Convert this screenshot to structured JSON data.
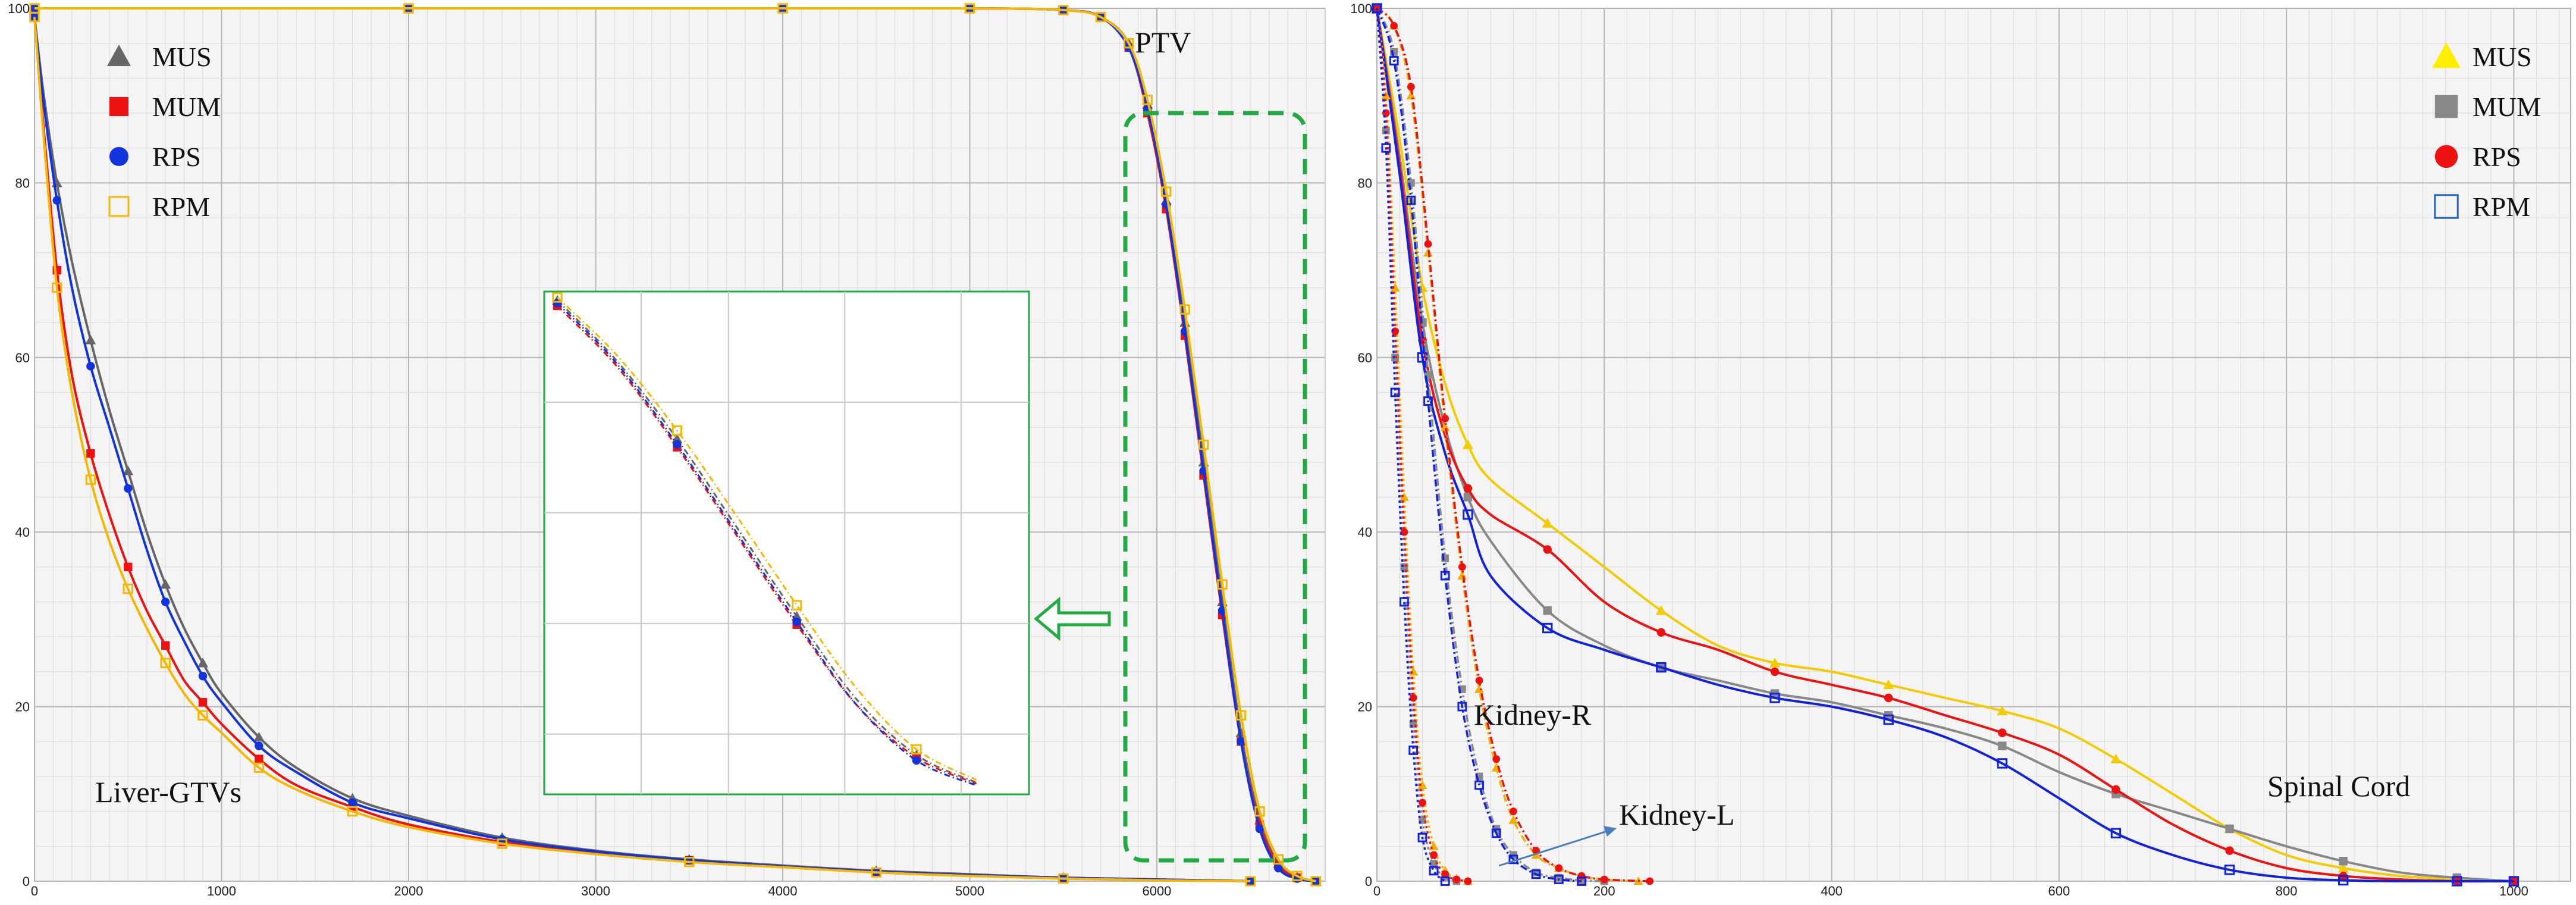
{
  "chart_data": [
    {
      "type": "line",
      "title": "",
      "xlabel": "",
      "ylabel": "",
      "xlim": [
        0,
        6900
      ],
      "ylim": [
        0,
        100
      ],
      "xticks": [
        0,
        1000,
        2000,
        3000,
        4000,
        5000,
        6000
      ],
      "yticks": [
        0,
        20,
        40,
        60,
        80,
        100
      ],
      "grid": true,
      "legend": {
        "placement": "top-left",
        "entries": [
          {
            "name": "MUS",
            "marker": "triangle",
            "color": "#666666"
          },
          {
            "name": "MUM",
            "marker": "square",
            "color": "#ee1111"
          },
          {
            "name": "RPS",
            "marker": "circle",
            "color": "#1133dd"
          },
          {
            "name": "RPM",
            "marker": "square-outline",
            "color": "#f5b800"
          }
        ]
      },
      "annotations": [
        "PTV",
        "Liver-GTVs"
      ],
      "series": [
        {
          "name": "MUS",
          "structure": "Liver-GTVs",
          "color": "#666666",
          "marker": "triangle",
          "x": [
            0,
            50,
            120,
            200,
            300,
            400,
            500,
            600,
            700,
            800,
            900,
            1000,
            1200,
            1400,
            1700,
            2000,
            2500,
            3000,
            3500,
            4000,
            4500,
            5000,
            5500,
            6000,
            6500
          ],
          "y": [
            99,
            90,
            80,
            71,
            62,
            54,
            47,
            40,
            34,
            29,
            25,
            21.5,
            16.5,
            13,
            9.5,
            7.5,
            5,
            3.5,
            2.5,
            1.8,
            1.2,
            0.8,
            0.4,
            0.2,
            0
          ]
        },
        {
          "name": "MUM",
          "structure": "Liver-GTVs",
          "color": "#ee1111",
          "marker": "square",
          "x": [
            0,
            50,
            120,
            200,
            300,
            400,
            500,
            600,
            700,
            800,
            900,
            1000,
            1200,
            1400,
            1700,
            2000,
            2500,
            3000,
            3500,
            4000,
            4500,
            5000,
            5500,
            6000,
            6500
          ],
          "y": [
            99,
            86,
            70,
            58,
            49,
            42,
            36,
            31,
            27,
            23,
            20.5,
            18,
            14,
            11,
            8.5,
            6.5,
            4.5,
            3.3,
            2.4,
            1.7,
            1.1,
            0.7,
            0.4,
            0.2,
            0
          ]
        },
        {
          "name": "RPS",
          "structure": "Liver-GTVs",
          "color": "#1133dd",
          "marker": "circle",
          "x": [
            0,
            50,
            120,
            200,
            300,
            400,
            500,
            600,
            700,
            800,
            900,
            1000,
            1200,
            1400,
            1700,
            2000,
            2500,
            3000,
            3500,
            4000,
            4500,
            5000,
            5500,
            6000,
            6500
          ],
          "y": [
            99,
            89,
            78,
            68,
            59,
            52,
            45,
            38,
            32,
            27.5,
            23.5,
            20.5,
            15.5,
            12.5,
            9,
            7.2,
            4.8,
            3.4,
            2.4,
            1.7,
            1.1,
            0.7,
            0.4,
            0.2,
            0
          ]
        },
        {
          "name": "RPM",
          "structure": "Liver-GTVs",
          "color": "#f5b800",
          "marker": "square-outline",
          "x": [
            0,
            50,
            120,
            200,
            300,
            400,
            500,
            600,
            700,
            800,
            900,
            1000,
            1200,
            1400,
            1700,
            2000,
            2500,
            3000,
            3500,
            4000,
            4500,
            5000,
            5500,
            6000,
            6500
          ],
          "y": [
            99,
            85,
            68,
            56,
            46,
            39,
            33.5,
            29,
            25,
            21.5,
            19,
            17,
            13,
            10.5,
            8,
            6.2,
            4.3,
            3.1,
            2.2,
            1.6,
            1.0,
            0.6,
            0.3,
            0.1,
            0
          ]
        },
        {
          "name": "MUS",
          "structure": "PTV",
          "color": "#666666",
          "marker": "triangle",
          "x": [
            0,
            2000,
            4000,
            5000,
            5500,
            5700,
            5850,
            5950,
            6050,
            6150,
            6250,
            6350,
            6450,
            6550,
            6650,
            6750,
            6850
          ],
          "y": [
            100,
            100,
            100,
            100,
            99.8,
            99,
            96,
            89,
            78,
            64,
            48,
            32,
            17,
            7,
            2,
            0.5,
            0
          ]
        },
        {
          "name": "MUM",
          "structure": "PTV",
          "color": "#ee1111",
          "marker": "square",
          "x": [
            0,
            2000,
            4000,
            5000,
            5500,
            5700,
            5850,
            5950,
            6050,
            6150,
            6250,
            6350,
            6450,
            6550,
            6650,
            6750,
            6850
          ],
          "y": [
            100,
            100,
            100,
            100,
            99.8,
            99,
            95.5,
            88,
            77,
            62.5,
            46.5,
            30.5,
            16,
            6.5,
            1.8,
            0.4,
            0
          ]
        },
        {
          "name": "RPS",
          "structure": "PTV",
          "color": "#1133dd",
          "marker": "circle",
          "x": [
            0,
            2000,
            4000,
            5000,
            5500,
            5700,
            5850,
            5950,
            6050,
            6150,
            6250,
            6350,
            6450,
            6550,
            6650,
            6750,
            6850
          ],
          "y": [
            100,
            100,
            100,
            100,
            99.8,
            99,
            95.5,
            88.5,
            77.5,
            63,
            47,
            31,
            16,
            6,
            1.5,
            0.3,
            0
          ]
        },
        {
          "name": "RPM",
          "structure": "PTV",
          "color": "#f5b800",
          "marker": "square-outline",
          "x": [
            0,
            2000,
            4000,
            5000,
            5500,
            5700,
            5850,
            5950,
            6050,
            6150,
            6250,
            6350,
            6450,
            6550,
            6650,
            6750,
            6850
          ],
          "y": [
            100,
            100,
            100,
            100,
            99.8,
            99,
            96,
            89.5,
            79,
            65.5,
            50,
            34,
            19,
            8,
            2.5,
            0.6,
            0
          ]
        }
      ]
    },
    {
      "type": "line",
      "title": "",
      "xlabel": "",
      "ylabel": "",
      "xlim": [
        0,
        1050
      ],
      "ylim": [
        0,
        100
      ],
      "xticks": [
        0,
        200,
        400,
        600,
        800,
        1000
      ],
      "yticks": [
        0,
        20,
        40,
        60,
        80,
        100
      ],
      "grid": true,
      "legend": {
        "placement": "top-right",
        "entries": [
          {
            "name": "MUS",
            "marker": "triangle",
            "color": "#ffee00"
          },
          {
            "name": "MUM",
            "marker": "square",
            "color": "#888888"
          },
          {
            "name": "RPS",
            "marker": "circle",
            "color": "#ee1111"
          },
          {
            "name": "RPM",
            "marker": "square-outline",
            "color": "#2266bb"
          }
        ]
      },
      "annotations": [
        "Kidney-R",
        "Kidney-L",
        "Spinal Cord"
      ],
      "series": [
        {
          "name": "MUS",
          "structure": "Spinal Cord",
          "color": "#f2cc00",
          "marker": "triangle",
          "x": [
            0,
            20,
            40,
            60,
            80,
            100,
            150,
            200,
            250,
            300,
            350,
            400,
            450,
            500,
            550,
            600,
            650,
            700,
            750,
            800,
            850,
            900,
            950,
            1000
          ],
          "y": [
            100,
            85,
            68,
            57,
            50,
            46,
            41,
            36,
            31,
            27,
            25,
            24,
            22.5,
            21,
            19.5,
            17.5,
            14,
            10,
            6,
            3,
            1.5,
            0.6,
            0.2,
            0
          ]
        },
        {
          "name": "MUM",
          "structure": "Spinal Cord",
          "color": "#888888",
          "marker": "square",
          "x": [
            0,
            20,
            40,
            60,
            80,
            100,
            150,
            200,
            250,
            300,
            350,
            400,
            450,
            500,
            550,
            600,
            650,
            700,
            750,
            800,
            850,
            900,
            950,
            1000
          ],
          "y": [
            100,
            83,
            64,
            52,
            44,
            39,
            31,
            27,
            24.5,
            23,
            21.5,
            20.5,
            19,
            17.5,
            15.5,
            12.5,
            10,
            8,
            6,
            4,
            2.3,
            1,
            0.4,
            0
          ]
        },
        {
          "name": "RPS",
          "structure": "Spinal Cord",
          "color": "#ee1111",
          "marker": "circle",
          "x": [
            0,
            20,
            40,
            60,
            80,
            100,
            150,
            200,
            250,
            300,
            350,
            400,
            450,
            500,
            550,
            600,
            650,
            700,
            750,
            800,
            850,
            900,
            950,
            1000
          ],
          "y": [
            100,
            82,
            62,
            51,
            45,
            42,
            38,
            32,
            28.5,
            26.5,
            24,
            22.5,
            21,
            19,
            17,
            14.5,
            10.5,
            6.5,
            3.5,
            1.5,
            0.6,
            0.2,
            0,
            0
          ]
        },
        {
          "name": "RPM",
          "structure": "Spinal Cord",
          "color": "#1122dd",
          "marker": "square-outline",
          "x": [
            0,
            20,
            40,
            60,
            80,
            100,
            150,
            200,
            250,
            300,
            350,
            400,
            450,
            500,
            550,
            600,
            650,
            700,
            750,
            800,
            850,
            900,
            950,
            1000
          ],
          "y": [
            100,
            81,
            60,
            49,
            42,
            35,
            29,
            26.5,
            24.5,
            22.5,
            21,
            20,
            18.5,
            16.5,
            13.5,
            9.5,
            5.5,
            3,
            1.3,
            0.4,
            0.1,
            0,
            0,
            0
          ]
        },
        {
          "name": "MUS",
          "structure": "Kidney-R",
          "color": "#f0b000",
          "marker": "triangle",
          "x": [
            0,
            15,
            30,
            45,
            60,
            75,
            90,
            105,
            120,
            140,
            160,
            180,
            200,
            230
          ],
          "y": [
            100,
            98,
            90,
            72,
            52,
            35,
            22,
            13,
            7,
            3,
            1.5,
            0.6,
            0.2,
            0
          ]
        },
        {
          "name": "MUM",
          "structure": "Kidney-R",
          "color": "#888888",
          "marker": "square",
          "x": [
            0,
            15,
            30,
            45,
            60,
            75,
            90,
            105,
            120,
            140,
            160,
            180,
            200
          ],
          "y": [
            100,
            95,
            80,
            58,
            37,
            22,
            12,
            6,
            3,
            1,
            0.4,
            0.1,
            0
          ]
        },
        {
          "name": "RPS",
          "structure": "Kidney-R",
          "color": "#ee1111",
          "marker": "circle",
          "x": [
            0,
            15,
            30,
            45,
            60,
            75,
            90,
            105,
            120,
            140,
            160,
            180,
            200,
            240
          ],
          "y": [
            100,
            98,
            91,
            73,
            53,
            36,
            23,
            14,
            8,
            3.5,
            1.5,
            0.6,
            0.2,
            0
          ]
        },
        {
          "name": "RPM",
          "structure": "Kidney-R",
          "color": "#1122dd",
          "marker": "square-outline",
          "x": [
            0,
            15,
            30,
            45,
            60,
            75,
            90,
            105,
            120,
            140,
            160,
            180
          ],
          "y": [
            100,
            94,
            78,
            55,
            35,
            20,
            11,
            5.5,
            2.5,
            0.8,
            0.2,
            0
          ]
        },
        {
          "name": "MUS",
          "structure": "Kidney-L",
          "color": "#f0b000",
          "marker": "triangle",
          "x": [
            0,
            8,
            16,
            24,
            32,
            40,
            50,
            60,
            70,
            80
          ],
          "y": [
            100,
            90,
            68,
            44,
            24,
            11,
            4,
            1.2,
            0.3,
            0
          ]
        },
        {
          "name": "MUM",
          "structure": "Kidney-L",
          "color": "#888888",
          "marker": "square",
          "x": [
            0,
            8,
            16,
            24,
            32,
            40,
            50,
            60,
            70
          ],
          "y": [
            100,
            86,
            60,
            36,
            18,
            7,
            2,
            0.5,
            0
          ]
        },
        {
          "name": "RPS",
          "structure": "Kidney-L",
          "color": "#ee1111",
          "marker": "circle",
          "x": [
            0,
            8,
            16,
            24,
            32,
            40,
            50,
            60,
            70,
            80
          ],
          "y": [
            100,
            88,
            63,
            40,
            21,
            9,
            3,
            0.8,
            0.2,
            0
          ]
        },
        {
          "name": "RPM",
          "structure": "Kidney-L",
          "color": "#1122dd",
          "marker": "square-outline",
          "x": [
            0,
            8,
            16,
            24,
            32,
            40,
            50,
            60
          ],
          "y": [
            100,
            84,
            56,
            32,
            15,
            5,
            1.2,
            0
          ]
        }
      ]
    }
  ]
}
